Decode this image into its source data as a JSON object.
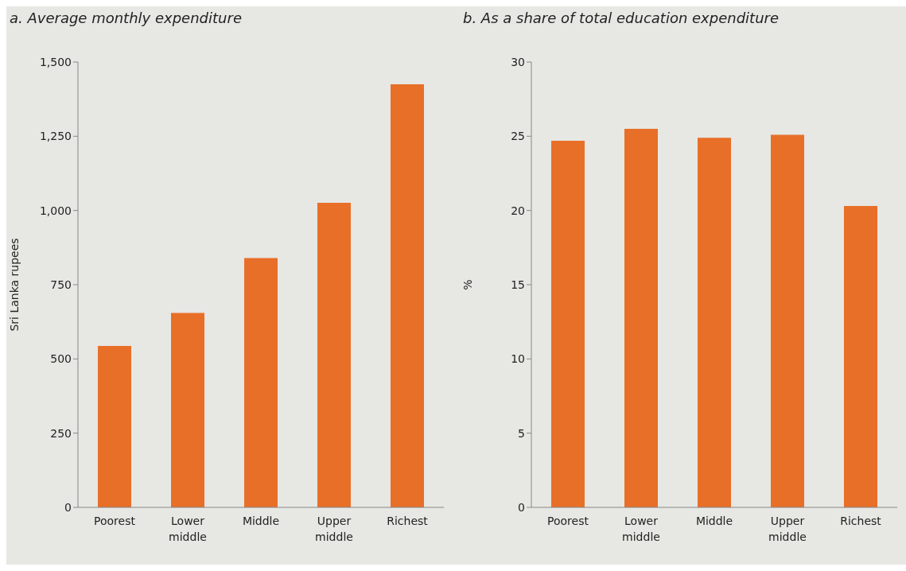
{
  "chart_data": [
    {
      "type": "bar",
      "title": "a. Average monthly expenditure",
      "ylabel": "Sri Lanka rupees",
      "categories": [
        "Poorest",
        "Lower middle",
        "Middle",
        "Upper middle",
        "Richest"
      ],
      "values": [
        544,
        655,
        840,
        1026,
        1425
      ],
      "color": "#e86f28",
      "ylim": [
        0,
        1500
      ],
      "yticks": [
        0,
        {
          "value": 250,
          "label": "250"
        },
        {
          "value": 500,
          "label": "500"
        },
        {
          "value": 750,
          "label": "750"
        },
        {
          "value": 1000,
          "label": "1,000"
        },
        {
          "value": 1250,
          "label": "1,250"
        },
        {
          "value": 1500,
          "label": "1,500"
        }
      ],
      "grid": false
    },
    {
      "type": "bar",
      "title": "b. As a share of total education expenditure",
      "ylabel": "%",
      "categories": [
        "Poorest",
        "Lower middle",
        "Middle",
        "Upper middle",
        "Richest"
      ],
      "values": [
        24.7,
        25.5,
        24.9,
        25.1,
        20.3
      ],
      "color": "#e86f28",
      "ylim": [
        0,
        30
      ],
      "yticks": [
        0,
        5,
        10,
        15,
        20,
        25,
        30
      ],
      "grid": false
    }
  ]
}
